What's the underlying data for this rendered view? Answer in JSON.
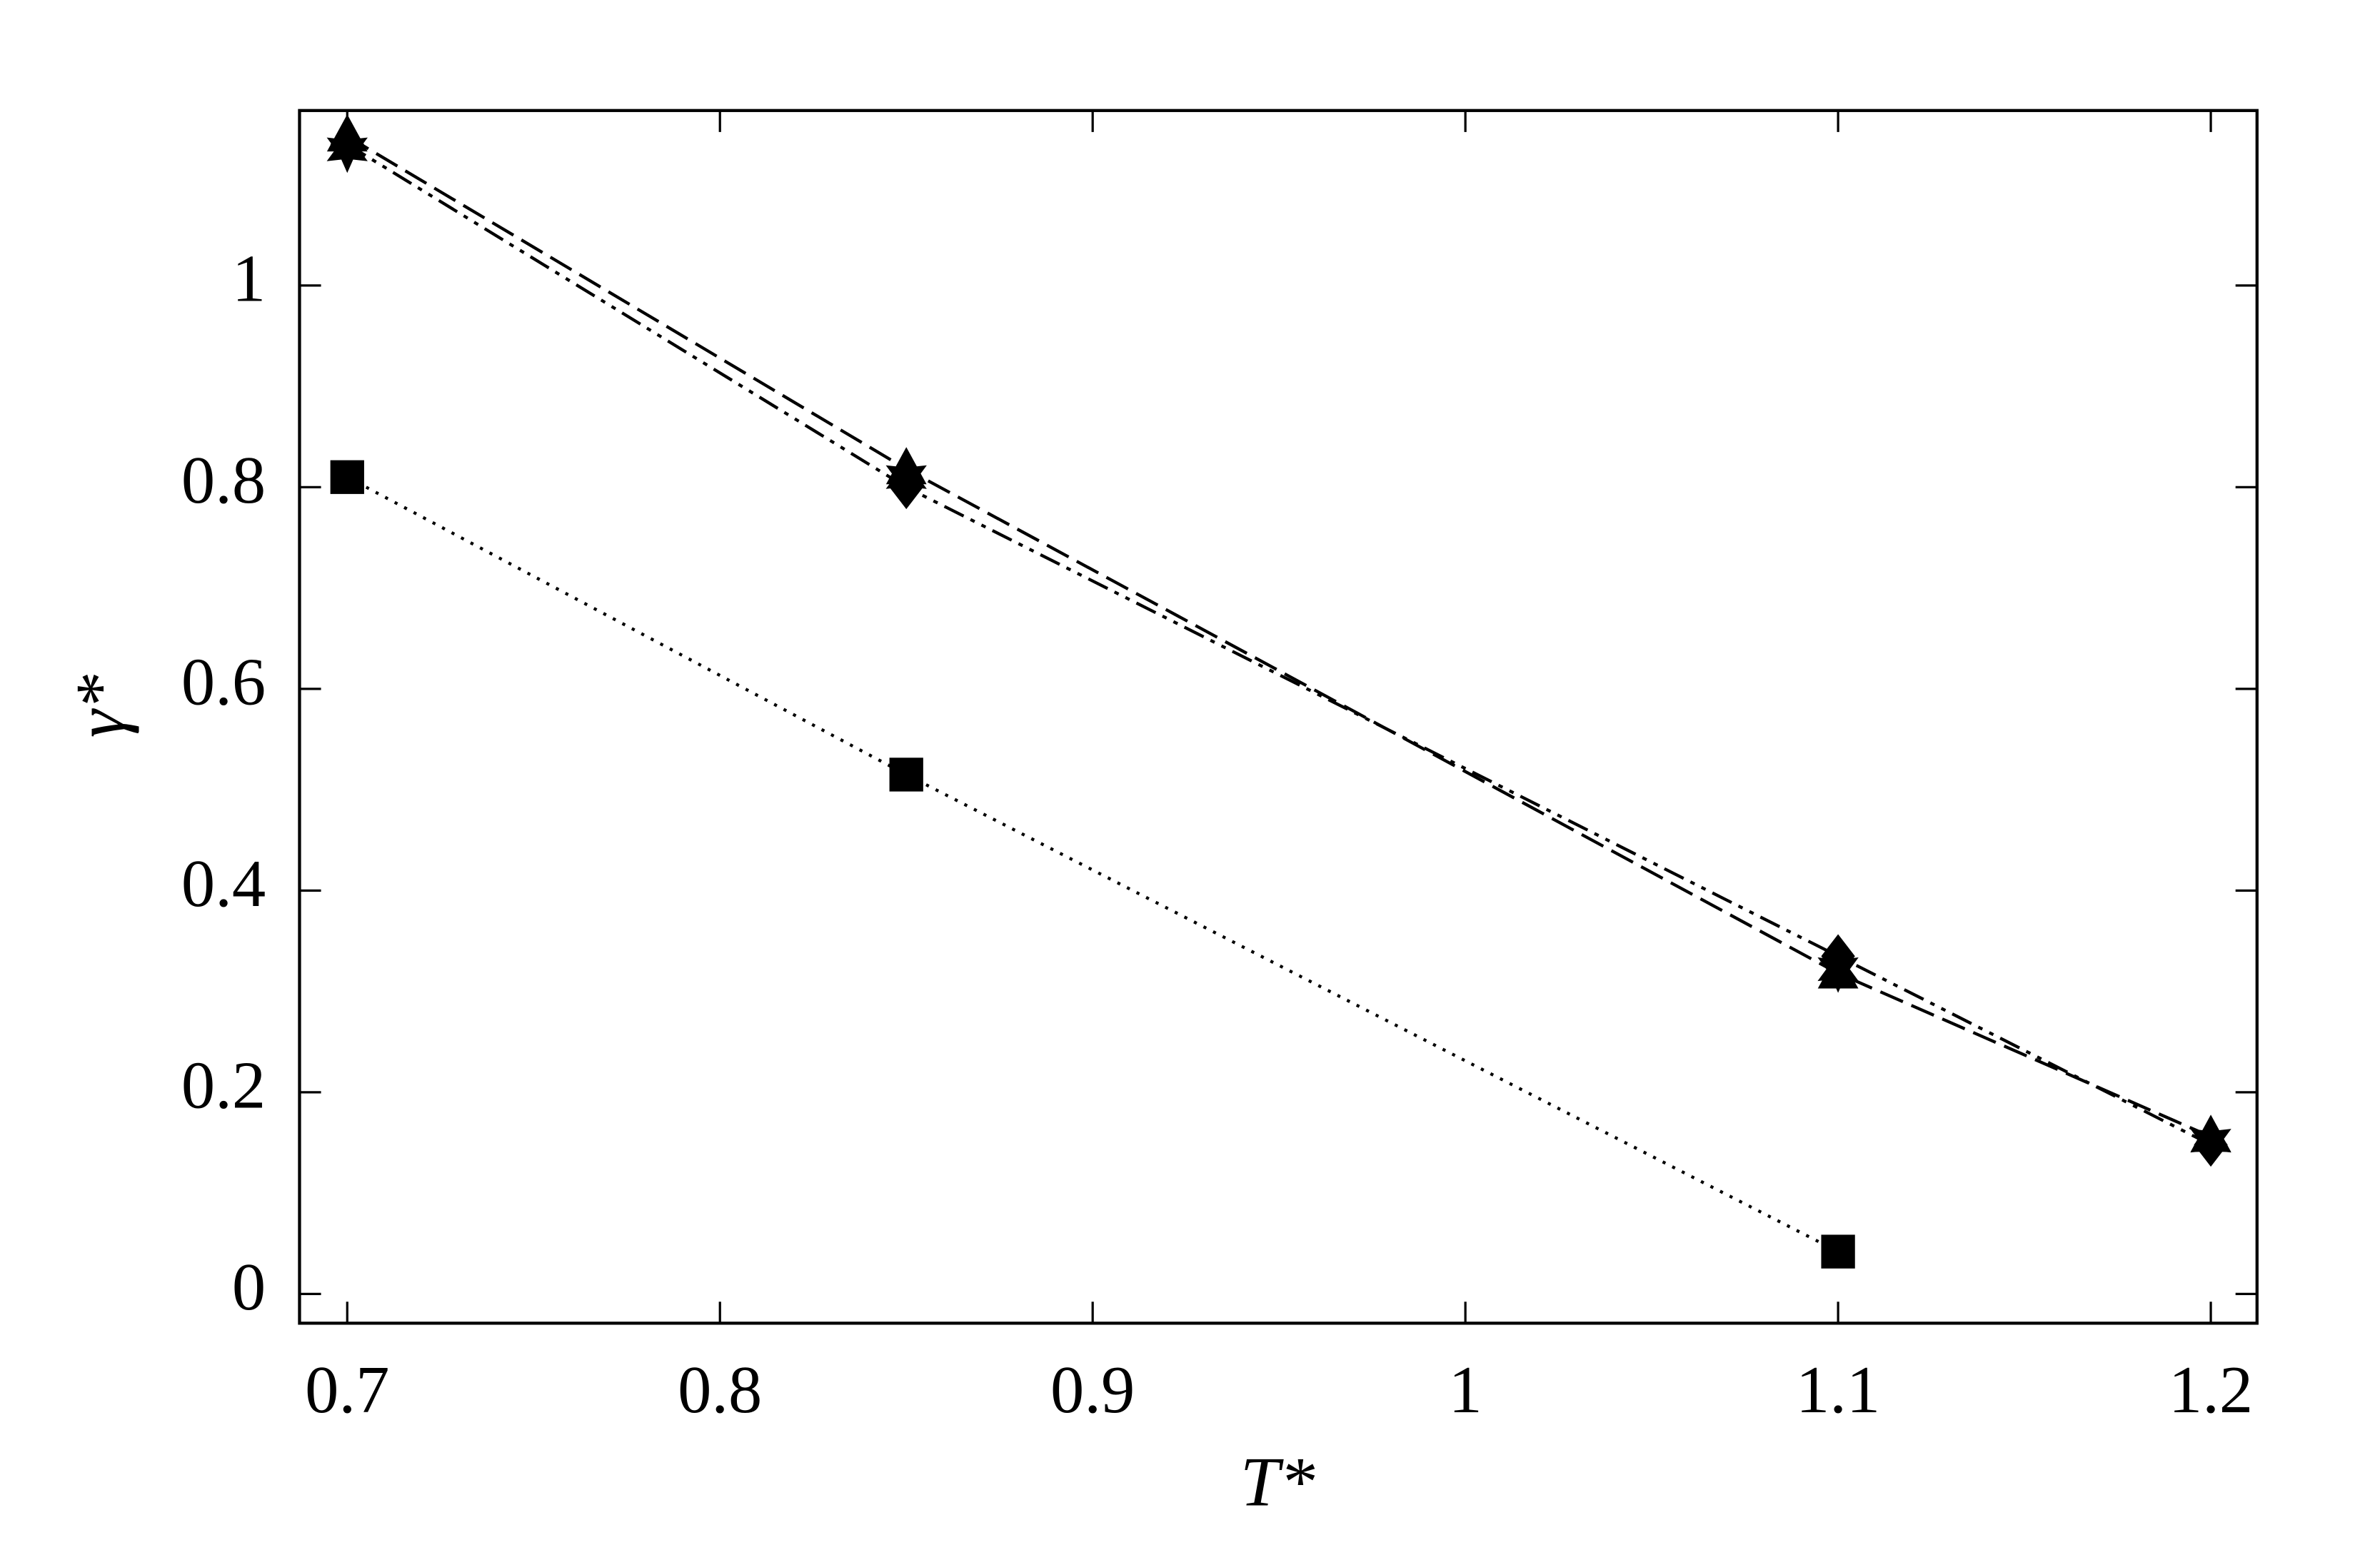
{
  "chart_data": {
    "type": "line",
    "xlabel": "T*",
    "ylabel": "γ*",
    "x": [
      0.7,
      0.85,
      1.1,
      1.2
    ],
    "series": [
      {
        "color": "#000000",
        "marker": "square",
        "dash": "dotted",
        "values": [
          0.81,
          0.515,
          0.042,
          null
        ]
      },
      {
        "color": "#000000",
        "marker": "triangle",
        "dash": "dashed",
        "values": [
          1.148,
          0.818,
          0.318,
          0.156
        ]
      },
      {
        "color": "#000000",
        "marker": "diamond",
        "dash": "dashdotdot",
        "values": [
          1.14,
          0.8,
          0.335,
          0.148
        ]
      },
      {
        "color": "#000000",
        "marker": "star",
        "dash": "none",
        "values": [
          1.135,
          0.81,
          0.322,
          0.152
        ]
      }
    ],
    "xlim": [
      0.6872,
      1.2124
    ],
    "ylim": [
      -0.029,
      1.1735
    ],
    "xticks": [
      0.7,
      0.8,
      0.9,
      1,
      1.1,
      1.2
    ],
    "yticks": [
      0,
      0.2,
      0.4,
      0.6,
      0.8,
      1
    ],
    "grid": false
  }
}
